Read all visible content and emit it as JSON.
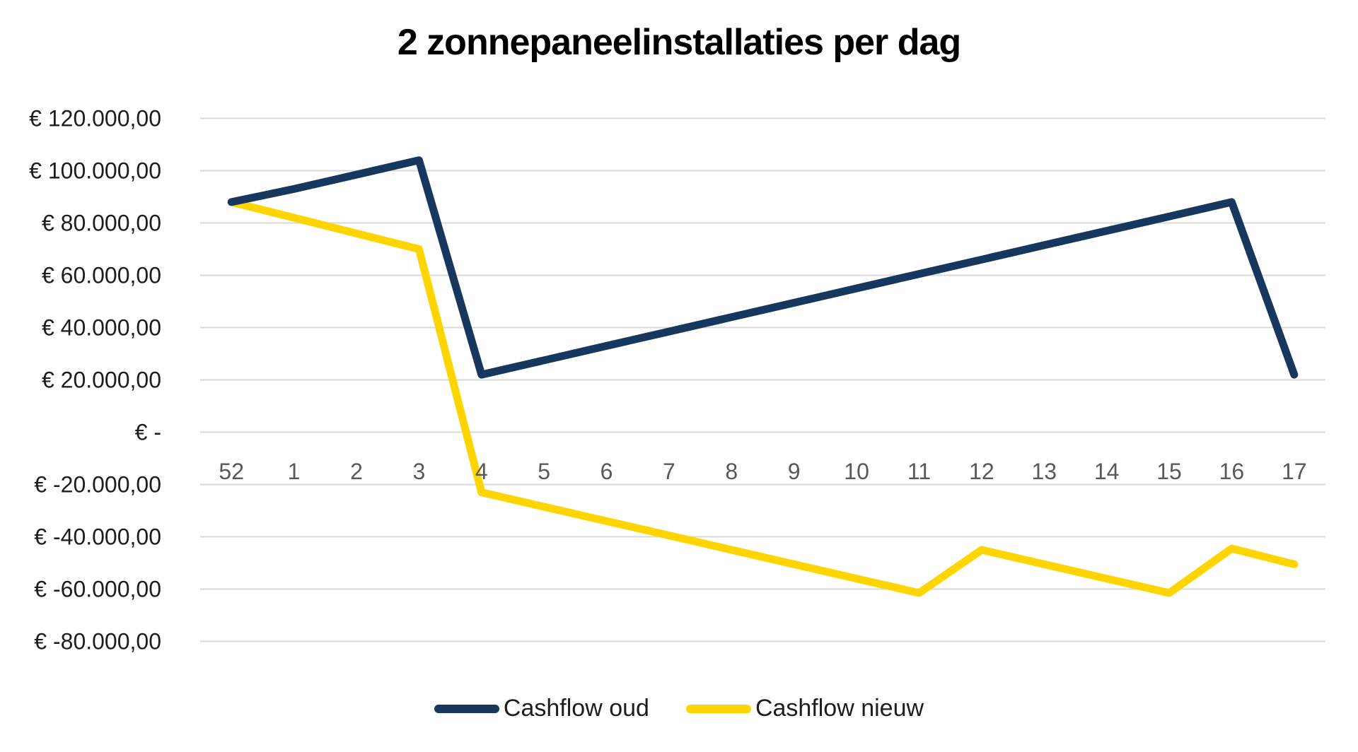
{
  "chart": {
    "title": "2 zonnepaneelinstallaties per dag"
  },
  "chart_data": {
    "type": "line",
    "title": "2 zonnepaneelinstallaties per dag",
    "xlabel": "",
    "ylabel": "",
    "categories": [
      "52",
      "1",
      "2",
      "3",
      "4",
      "5",
      "6",
      "7",
      "8",
      "9",
      "10",
      "11",
      "12",
      "13",
      "14",
      "15",
      "16",
      "17"
    ],
    "series": [
      {
        "name": "Cashflow oud",
        "color": "#17375E",
        "values": [
          88000,
          93000,
          98500,
          104000,
          22000,
          27500,
          33000,
          38500,
          44000,
          49500,
          55000,
          60500,
          66000,
          71500,
          77000,
          82500,
          88000,
          22000
        ]
      },
      {
        "name": "Cashflow nieuw",
        "color": "#FFD500",
        "values": [
          88000,
          82000,
          76000,
          70000,
          -23000,
          -28500,
          -34000,
          -39500,
          -45000,
          -50500,
          -56000,
          -61500,
          -45000,
          -50500,
          -56000,
          -61500,
          -44500,
          -50500
        ]
      }
    ],
    "y_ticks": [
      {
        "value": 120000,
        "label": "€ 120.000,00"
      },
      {
        "value": 100000,
        "label": "€ 100.000,00"
      },
      {
        "value": 80000,
        "label": "€ 80.000,00"
      },
      {
        "value": 60000,
        "label": "€ 60.000,00"
      },
      {
        "value": 40000,
        "label": "€ 40.000,00"
      },
      {
        "value": 20000,
        "label": "€ 20.000,00"
      },
      {
        "value": 0,
        "label": "€ -"
      },
      {
        "value": -20000,
        "label": "€ -20.000,00"
      },
      {
        "value": -40000,
        "label": "€ -40.000,00"
      },
      {
        "value": -60000,
        "label": "€ -60.000,00"
      },
      {
        "value": -80000,
        "label": "€ -80.000,00"
      }
    ],
    "ylim": [
      -80000,
      120000
    ],
    "grid": true,
    "legend_position": "bottom"
  },
  "colors": {
    "background": "#FFFFFF",
    "gridline": "#D9D9D9",
    "y_tick_label": "#1D1D1D",
    "x_tick_label": "#595959",
    "title": "#000000"
  }
}
